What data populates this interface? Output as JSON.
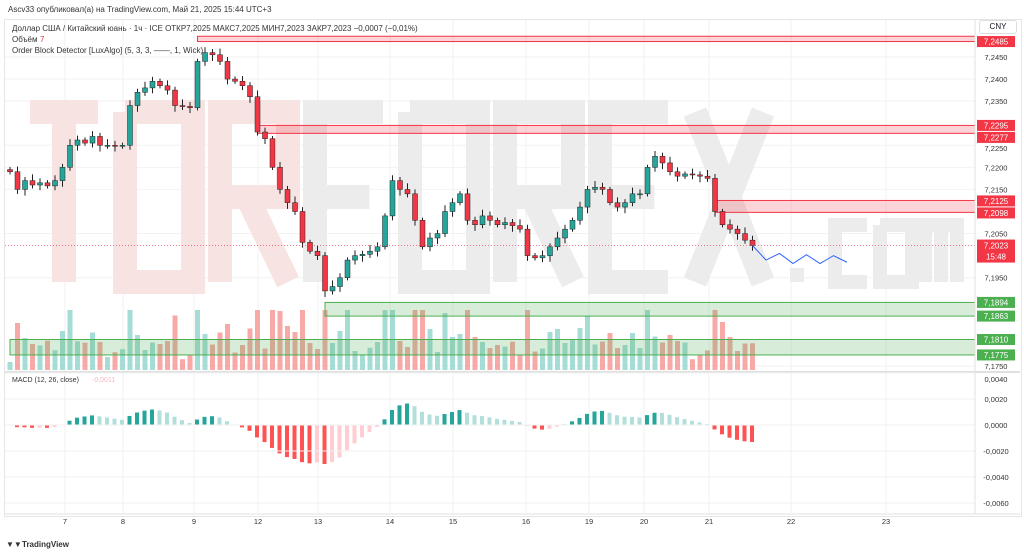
{
  "header": {
    "published": "Ascv33 опубликовал(а) на TradingView.com, Май 21, 2025 15:44 UTC+3"
  },
  "legend": {
    "symbol_line": "Доллар США / Китайский юань · 1ч · ICE  ОТКР7,2025  МАКС7,2025  МИН7,2023  ЗАКР7,2023  −0,0007 (−0,01%)",
    "volume_label": "Объём",
    "volume_value": "7",
    "indicator": "Order Block Detector [LuxAlgo] (5, 3, 3, ——, 1, Wick)"
  },
  "currency": "CNY",
  "watermark": "TORFOREX.com",
  "footer": {
    "brand": "TradingView"
  },
  "colors": {
    "up": "#26a69a",
    "down": "#f23645",
    "bear_block": "#f23645",
    "bull_block": "#4caf50",
    "projection": "#2962ff"
  },
  "chart_data": [
    {
      "type": "candlestick",
      "title": "Доллар США / Китайский юань",
      "interval": "1ч",
      "price_ticks": [
        "7,2450",
        "7,2400",
        "7,2350",
        "7,2250",
        "7,2200",
        "7,2150",
        "7,2050",
        "7,1950",
        "7,1750"
      ],
      "ylim": [
        7.174,
        7.25
      ],
      "x_ticks": [
        "7",
        "8",
        "9",
        "12",
        "13",
        "14",
        "15",
        "16",
        "19",
        "20",
        "21",
        "22",
        "23"
      ],
      "last_price": {
        "value": "7,2023",
        "countdown": "15:48"
      },
      "closes": [
        7.219,
        7.215,
        7.217,
        7.216,
        7.2165,
        7.2158,
        7.217,
        7.22,
        7.225,
        7.2262,
        7.2255,
        7.227,
        7.225,
        7.225,
        7.2248,
        7.225,
        7.234,
        7.237,
        7.238,
        7.2395,
        7.2385,
        7.2375,
        7.234,
        7.2338,
        7.2335,
        7.244,
        7.246,
        7.2455,
        7.244,
        7.24,
        7.2395,
        7.2385,
        7.236,
        7.228,
        7.2265,
        7.22,
        7.215,
        7.212,
        7.21,
        7.203,
        7.201,
        7.2,
        7.192,
        7.193,
        7.195,
        7.199,
        7.2,
        7.2003,
        7.201,
        7.202,
        7.209,
        7.217,
        7.215,
        7.214,
        7.208,
        7.202,
        7.204,
        7.205,
        7.21,
        7.212,
        7.214,
        7.208,
        7.207,
        7.209,
        7.208,
        7.207,
        7.2075,
        7.2068,
        7.206,
        7.2,
        7.1995,
        7.2,
        7.202,
        7.204,
        7.206,
        7.208,
        7.211,
        7.215,
        7.2155,
        7.215,
        7.212,
        7.211,
        7.212,
        7.214,
        7.214,
        7.22,
        7.2225,
        7.221,
        7.219,
        7.218,
        7.2185,
        7.2183,
        7.218,
        7.2175,
        7.21,
        7.207,
        7.206,
        7.205,
        7.2035,
        7.2023
      ],
      "order_blocks": [
        {
          "kind": "bearish",
          "top": 7.2497,
          "bottom": 7.2485,
          "top_label": "",
          "bottom_label": "7,2485",
          "start_index": 25
        },
        {
          "kind": "bearish",
          "top": 7.2295,
          "bottom": 7.2277,
          "top_label": "7,2295",
          "bottom_label": "7,2277",
          "start_index": 33
        },
        {
          "kind": "bearish",
          "top": 7.2125,
          "bottom": 7.2098,
          "top_label": "7,2125",
          "bottom_label": "7,2098",
          "start_index": 94
        },
        {
          "kind": "bullish",
          "top": 7.1894,
          "bottom": 7.1863,
          "top_label": "7,1894",
          "bottom_label": "7,1863",
          "start_index": 42
        },
        {
          "kind": "bullish",
          "top": 7.181,
          "bottom": 7.1775,
          "top_label": "7,1810",
          "bottom_label": "7,1775",
          "start_index": 0
        }
      ],
      "projection": [
        7.2023,
        7.199,
        7.2005,
        7.1982,
        7.2002,
        7.1982,
        7.2,
        7.1985
      ]
    },
    {
      "type": "histogram",
      "title": "MACD (12, 26, close)",
      "current": "-0,0011",
      "ticks": [
        "0,0040",
        "0,0020",
        "0,0000",
        "-0,0020",
        "-0,0040",
        "-0,0060"
      ],
      "ylim": [
        -0.0068,
        0.004
      ]
    }
  ]
}
